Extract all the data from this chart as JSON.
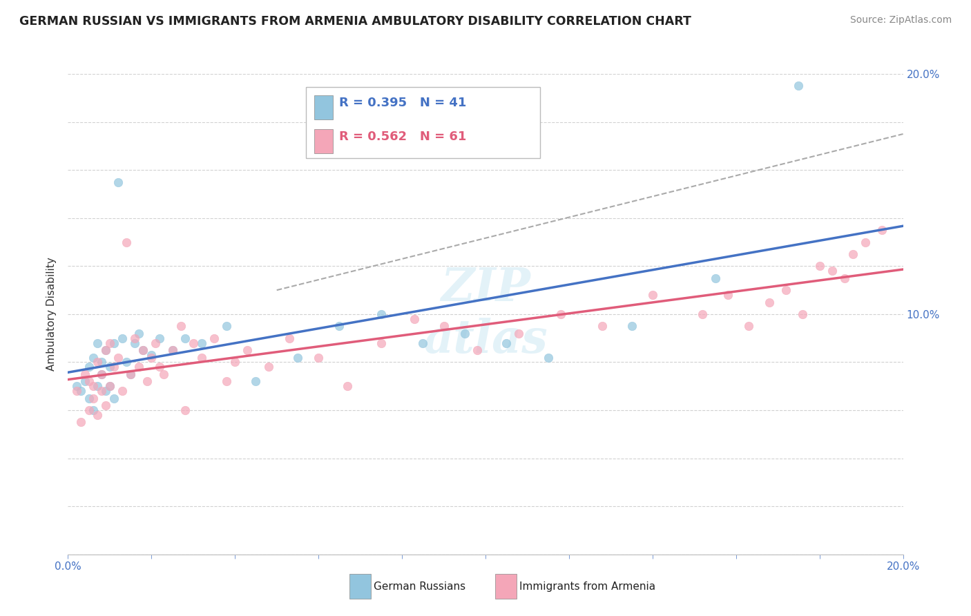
{
  "title": "GERMAN RUSSIAN VS IMMIGRANTS FROM ARMENIA AMBULATORY DISABILITY CORRELATION CHART",
  "source": "Source: ZipAtlas.com",
  "ylabel": "Ambulatory Disability",
  "legend_label1": "German Russians",
  "legend_label2": "Immigrants from Armenia",
  "r1": 0.395,
  "n1": 41,
  "r2": 0.562,
  "n2": 61,
  "color_blue": "#92c5de",
  "color_pink": "#f4a6b8",
  "color_blue_line": "#4472c4",
  "color_pink_line": "#e05c7a",
  "color_dash": "#aaaaaa",
  "background_color": "#ffffff",
  "xmin": 0.0,
  "xmax": 0.2,
  "ymin": 0.0,
  "ymax": 0.2,
  "german_russian_x": [
    0.002,
    0.003,
    0.004,
    0.005,
    0.005,
    0.006,
    0.006,
    0.007,
    0.007,
    0.008,
    0.008,
    0.009,
    0.009,
    0.01,
    0.01,
    0.011,
    0.011,
    0.012,
    0.013,
    0.014,
    0.015,
    0.016,
    0.017,
    0.018,
    0.02,
    0.022,
    0.025,
    0.028,
    0.032,
    0.038,
    0.045,
    0.055,
    0.065,
    0.075,
    0.085,
    0.095,
    0.105,
    0.115,
    0.135,
    0.155,
    0.175
  ],
  "german_russian_y": [
    0.07,
    0.068,
    0.072,
    0.065,
    0.078,
    0.06,
    0.082,
    0.07,
    0.088,
    0.075,
    0.08,
    0.068,
    0.085,
    0.07,
    0.078,
    0.065,
    0.088,
    0.155,
    0.09,
    0.08,
    0.075,
    0.088,
    0.092,
    0.085,
    0.083,
    0.09,
    0.085,
    0.09,
    0.088,
    0.095,
    0.072,
    0.082,
    0.095,
    0.1,
    0.088,
    0.092,
    0.088,
    0.082,
    0.095,
    0.115,
    0.195
  ],
  "armenia_x": [
    0.002,
    0.003,
    0.004,
    0.005,
    0.005,
    0.006,
    0.006,
    0.007,
    0.007,
    0.008,
    0.008,
    0.009,
    0.009,
    0.01,
    0.01,
    0.011,
    0.012,
    0.013,
    0.014,
    0.015,
    0.016,
    0.017,
    0.018,
    0.019,
    0.02,
    0.021,
    0.022,
    0.023,
    0.025,
    0.027,
    0.028,
    0.03,
    0.032,
    0.035,
    0.038,
    0.04,
    0.043,
    0.048,
    0.053,
    0.06,
    0.067,
    0.075,
    0.083,
    0.09,
    0.098,
    0.108,
    0.118,
    0.128,
    0.14,
    0.152,
    0.158,
    0.163,
    0.168,
    0.172,
    0.176,
    0.18,
    0.183,
    0.186,
    0.188,
    0.191,
    0.195
  ],
  "armenia_y": [
    0.068,
    0.055,
    0.075,
    0.06,
    0.072,
    0.065,
    0.07,
    0.058,
    0.08,
    0.068,
    0.075,
    0.062,
    0.085,
    0.07,
    0.088,
    0.078,
    0.082,
    0.068,
    0.13,
    0.075,
    0.09,
    0.078,
    0.085,
    0.072,
    0.082,
    0.088,
    0.078,
    0.075,
    0.085,
    0.095,
    0.06,
    0.088,
    0.082,
    0.09,
    0.072,
    0.08,
    0.085,
    0.078,
    0.09,
    0.082,
    0.07,
    0.088,
    0.098,
    0.095,
    0.085,
    0.092,
    0.1,
    0.095,
    0.108,
    0.1,
    0.108,
    0.095,
    0.105,
    0.11,
    0.1,
    0.12,
    0.118,
    0.115,
    0.125,
    0.13,
    0.135
  ]
}
